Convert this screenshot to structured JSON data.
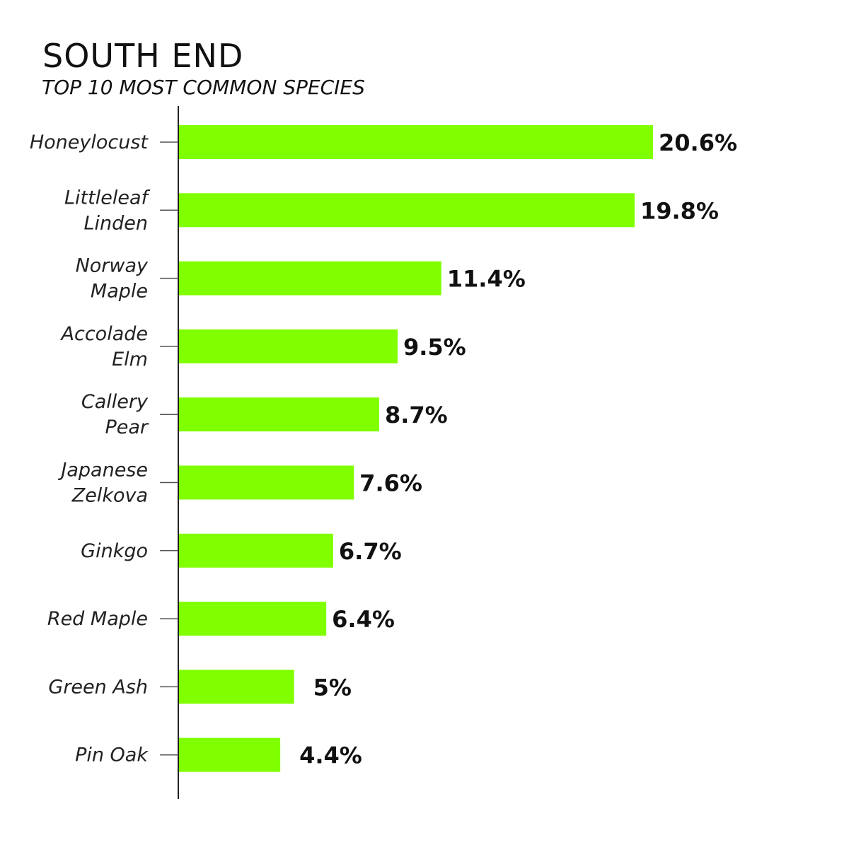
{
  "chart_data": {
    "type": "bar",
    "orientation": "horizontal",
    "title": "SOUTH END",
    "subtitle": "TOP 10 MOST COMMON SPECIES",
    "categories": [
      [
        "Honeylocust"
      ],
      [
        "Littleleaf",
        "Linden"
      ],
      [
        "Norway",
        "Maple"
      ],
      [
        "Accolade",
        "Elm"
      ],
      [
        "Callery",
        "Pear"
      ],
      [
        "Japanese",
        "Zelkova"
      ],
      [
        "Ginkgo"
      ],
      [
        "Red Maple"
      ],
      [
        "Green Ash"
      ],
      [
        "Pin Oak"
      ]
    ],
    "values": [
      20.6,
      19.8,
      11.4,
      9.5,
      8.7,
      7.6,
      6.7,
      6.4,
      5,
      4.4
    ],
    "value_labels": [
      "20.6%",
      "19.8%",
      "11.4%",
      "9.5%",
      "8.7%",
      "7.6%",
      "6.7%",
      "6.4%",
      "5%",
      "4.4%"
    ],
    "xlim": [
      0,
      20.6
    ],
    "grid": false,
    "legend": "none",
    "colors": {
      "bar": "#80ff00",
      "axis": "#222222",
      "text": "#111111"
    }
  }
}
